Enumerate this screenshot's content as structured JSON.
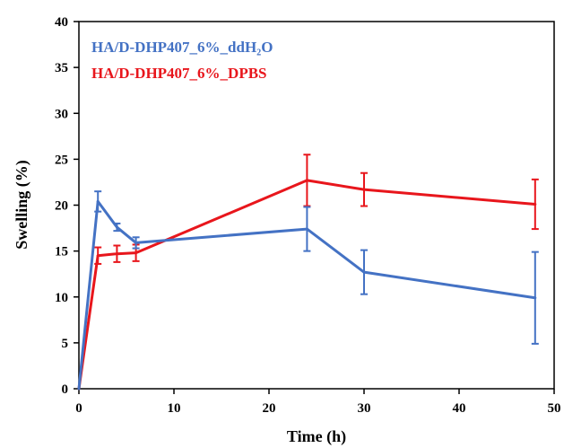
{
  "chart_data": {
    "type": "line",
    "xlabel": "Time (h)",
    "ylabel": "Swelling (%)",
    "xlim": [
      0,
      50
    ],
    "ylim": [
      0,
      40
    ],
    "xticks": [
      0,
      10,
      20,
      30,
      40,
      50
    ],
    "yticks": [
      0,
      5,
      10,
      15,
      20,
      25,
      30,
      35,
      40
    ],
    "grid": false,
    "legend_position": "top-left",
    "series": [
      {
        "name": "HA/D-DHP407_6%_ddH₂O",
        "color": "#4472C4",
        "x": [
          0,
          2,
          4,
          6,
          24,
          30,
          48
        ],
        "y": [
          0,
          20.4,
          17.6,
          15.9,
          17.4,
          12.7,
          9.9
        ],
        "err": [
          0,
          1.1,
          0.4,
          0.6,
          2.4,
          2.4,
          5.0
        ]
      },
      {
        "name": "HA/D-DHP407_6%_DPBS",
        "color": "#E8161C",
        "x": [
          0,
          2,
          4,
          6,
          24,
          30,
          48
        ],
        "y": [
          0,
          14.5,
          14.7,
          14.8,
          22.7,
          21.7,
          20.1
        ],
        "err": [
          0,
          0.9,
          0.9,
          0.9,
          2.8,
          1.8,
          2.7
        ]
      }
    ]
  }
}
